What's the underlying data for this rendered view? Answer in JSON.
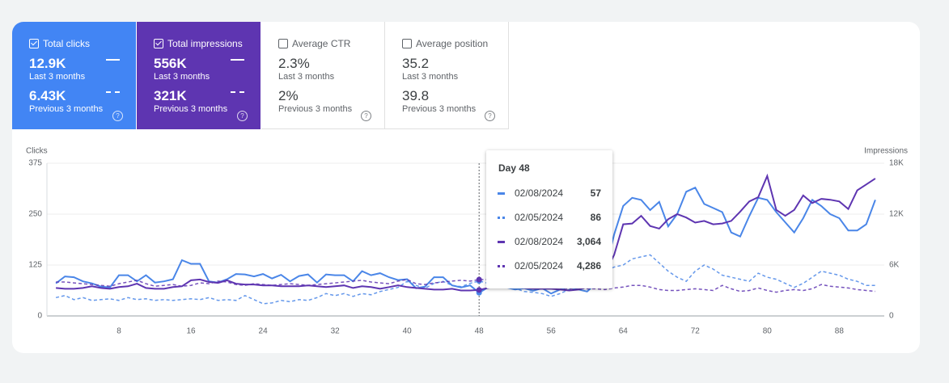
{
  "cards": [
    {
      "label": "Total clicks",
      "value": "12.9K",
      "period": "Last 3 months",
      "prev_value": "6.43K",
      "prev_period": "Previous 3 months"
    },
    {
      "label": "Total impressions",
      "value": "556K",
      "period": "Last 3 months",
      "prev_value": "321K",
      "prev_period": "Previous 3 months"
    },
    {
      "label": "Average CTR",
      "value": "2.3%",
      "period": "Last 3 months",
      "prev_value": "2%",
      "prev_period": "Previous 3 months"
    },
    {
      "label": "Average position",
      "value": "35.2",
      "period": "Last 3 months",
      "prev_value": "39.8",
      "prev_period": "Previous 3 months"
    }
  ],
  "tooltip": {
    "title": "Day 48",
    "rows": [
      {
        "date": "02/08/2024",
        "value": "57"
      },
      {
        "date": "02/05/2024",
        "value": "86"
      },
      {
        "date": "02/08/2024",
        "value": "3,064"
      },
      {
        "date": "02/05/2024",
        "value": "4,286"
      }
    ]
  },
  "chart_data": {
    "type": "line",
    "y_label": "Clicks",
    "y2_label": "Impressions",
    "x": [
      1,
      2,
      3,
      4,
      5,
      6,
      7,
      8,
      9,
      10,
      11,
      12,
      13,
      14,
      15,
      16,
      17,
      18,
      19,
      20,
      21,
      22,
      23,
      24,
      25,
      26,
      27,
      28,
      29,
      30,
      31,
      32,
      33,
      34,
      35,
      36,
      37,
      38,
      39,
      40,
      41,
      42,
      43,
      44,
      45,
      46,
      47,
      48,
      49,
      50,
      51,
      52,
      53,
      54,
      55,
      56,
      57,
      58,
      59,
      60,
      61,
      62,
      63,
      64,
      65,
      66,
      67,
      68,
      69,
      70,
      71,
      72,
      73,
      74,
      75,
      76,
      77,
      78,
      79,
      80,
      81,
      82,
      83,
      84,
      85,
      86,
      87,
      88,
      89,
      90,
      91,
      92
    ],
    "xlim": [
      0,
      93
    ],
    "xticks": [
      8,
      16,
      24,
      32,
      40,
      48,
      56,
      64,
      72,
      80,
      88
    ],
    "ylim": [
      0,
      375
    ],
    "yticks": [
      0,
      125,
      250,
      375
    ],
    "y2lim": [
      0,
      18000
    ],
    "y2ticks": [
      0,
      {
        "value": 6000,
        "label": "6K"
      },
      {
        "value": 12000,
        "label": "12K"
      },
      {
        "value": 18000,
        "label": "18K"
      }
    ],
    "grid": true,
    "highlight_x": 48,
    "series": [
      {
        "color": "#4a86e8",
        "dashed": false,
        "values": [
          80,
          97,
          95,
          85,
          80,
          72,
          70,
          100,
          100,
          85,
          100,
          82,
          85,
          90,
          137,
          128,
          128,
          85,
          82,
          90,
          103,
          102,
          97,
          103,
          92,
          101,
          85,
          98,
          102,
          82,
          102,
          100,
          100,
          85,
          110,
          100,
          105,
          95,
          88,
          90,
          68,
          72,
          95,
          95,
          75,
          70,
          75,
          57,
          70,
          75,
          70,
          65,
          68,
          62,
          68,
          55,
          65,
          70,
          65,
          60,
          80,
          110,
          200,
          270,
          290,
          285,
          260,
          280,
          220,
          250,
          305,
          315,
          275,
          265,
          255,
          205,
          195,
          245,
          290,
          285,
          255,
          230,
          205,
          240,
          285,
          270,
          250,
          240,
          210,
          210,
          225,
          285
        ]
      },
      {
        "color": "#4a86e8",
        "dashed": true,
        "values": [
          45,
          50,
          40,
          45,
          38,
          40,
          42,
          38,
          45,
          40,
          42,
          38,
          40,
          38,
          40,
          42,
          40,
          45,
          38,
          40,
          38,
          50,
          40,
          30,
          32,
          38,
          35,
          40,
          38,
          45,
          55,
          50,
          55,
          48,
          55,
          52,
          60,
          65,
          70,
          85,
          75,
          68,
          80,
          85,
          75,
          72,
          80,
          86,
          80,
          75,
          72,
          68,
          60,
          58,
          55,
          48,
          55,
          65,
          70,
          75,
          90,
          110,
          120,
          125,
          140,
          145,
          150,
          130,
          110,
          95,
          85,
          110,
          125,
          115,
          100,
          95,
          90,
          85,
          105,
          95,
          90,
          80,
          70,
          80,
          95,
          110,
          105,
          100,
          90,
          85,
          75,
          75
        ]
      },
      {
        "color": "#5e35b1",
        "dashed": false,
        "axis": "y2",
        "values": [
          3300,
          3200,
          3200,
          3300,
          3500,
          3300,
          3200,
          3400,
          3500,
          3800,
          3300,
          3200,
          3200,
          3400,
          3500,
          4200,
          4300,
          4000,
          3900,
          4200,
          3800,
          3700,
          3700,
          3600,
          3600,
          3500,
          3500,
          3500,
          3600,
          3500,
          3400,
          3500,
          3600,
          3300,
          3500,
          3400,
          3200,
          3400,
          3600,
          3400,
          3300,
          3200,
          3100,
          3100,
          3200,
          3000,
          3000,
          3064,
          3300,
          3500,
          3600,
          3400,
          3300,
          3200,
          3200,
          3200,
          3100,
          3000,
          3100,
          3400,
          4500,
          5000,
          7200,
          10800,
          10900,
          11800,
          10600,
          10300,
          11400,
          12000,
          11600,
          11000,
          11200,
          10800,
          10900,
          11200,
          12300,
          13500,
          14000,
          16500,
          12500,
          11800,
          12500,
          14200,
          13300,
          13800,
          13700,
          13500,
          12600,
          14800,
          15500,
          16200
        ]
      },
      {
        "color": "#5e35b1",
        "dashed": true,
        "axis": "y2",
        "values": [
          4000,
          4000,
          3900,
          3800,
          3700,
          3600,
          3500,
          3800,
          4000,
          4200,
          3800,
          3500,
          3600,
          3700,
          3500,
          3600,
          3900,
          3800,
          4100,
          4000,
          3700,
          3600,
          3800,
          3700,
          3600,
          3700,
          3800,
          3700,
          3600,
          3700,
          3800,
          3900,
          4000,
          4100,
          4200,
          4000,
          3900,
          3800,
          4100,
          4300,
          3800,
          3700,
          3900,
          4000,
          4100,
          4200,
          4100,
          4286,
          4300,
          3900,
          3700,
          3500,
          3400,
          3400,
          3300,
          3200,
          3300,
          3200,
          3300,
          3200,
          3200,
          3100,
          3300,
          3400,
          3600,
          3600,
          3400,
          3100,
          3000,
          3000,
          3100,
          3200,
          3100,
          3000,
          3600,
          3200,
          2900,
          3000,
          3300,
          3000,
          2800,
          3000,
          3100,
          3000,
          3200,
          3700,
          3500,
          3400,
          3300,
          3100,
          3000,
          2900
        ]
      }
    ]
  }
}
